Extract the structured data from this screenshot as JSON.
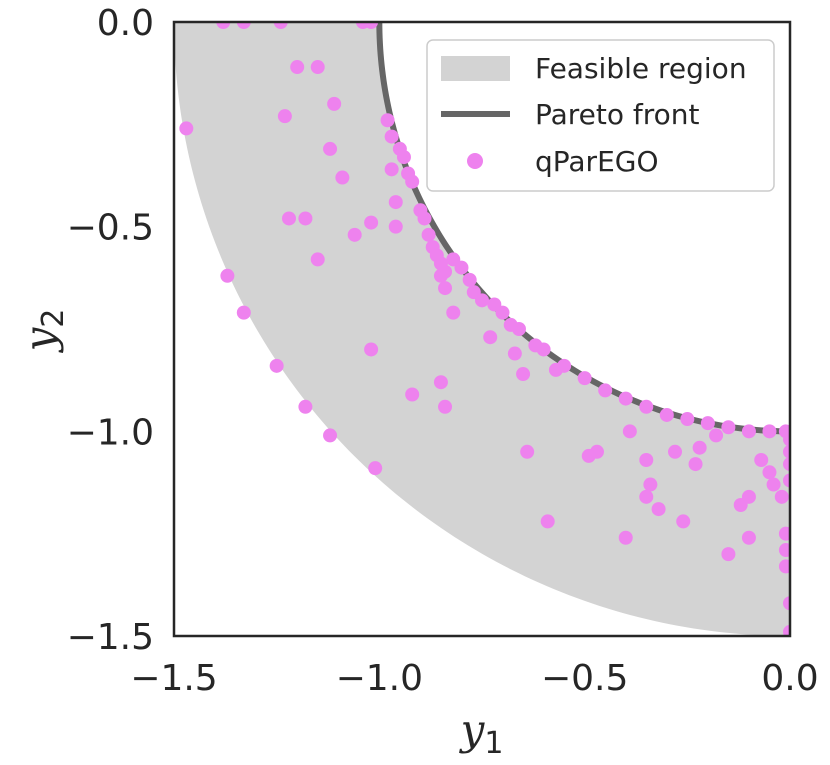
{
  "chart_data": {
    "type": "scatter",
    "title": "",
    "xlabel": "y",
    "xlabel_sub": "1",
    "ylabel": "y",
    "ylabel_sub": "2",
    "xlim": [
      -1.5,
      0.0
    ],
    "ylim": [
      -1.5,
      0.0
    ],
    "xticks": [
      -1.5,
      -1.0,
      -0.5,
      0.0
    ],
    "yticks": [
      -1.5,
      -1.0,
      -0.5,
      0.0
    ],
    "xtick_labels": [
      "−1.5",
      "−1.0",
      "−0.5",
      "0.0"
    ],
    "ytick_labels": [
      "−1.5",
      "−1.0",
      "−0.5",
      "0.0"
    ],
    "grid": false,
    "legend_position": "top-right",
    "colors": {
      "feasible": "#d3d3d3",
      "pareto": "#666666",
      "points": "#ee82ee",
      "axes": "#262626"
    },
    "feasible_region": {
      "inner_radius": 1.0,
      "outer_radius": 1.5,
      "label": "Feasible region"
    },
    "pareto_front": {
      "radius": 1.0,
      "label": "Pareto front"
    },
    "series": [
      {
        "name": "qParEGO",
        "points": [
          [
            -1.38,
            0.0
          ],
          [
            -1.33,
            0.0
          ],
          [
            -1.24,
            0.0
          ],
          [
            -1.04,
            0.0
          ],
          [
            -1.02,
            0.0
          ],
          [
            -1.47,
            -0.26
          ],
          [
            -1.2,
            -0.11
          ],
          [
            -1.15,
            -0.11
          ],
          [
            -1.11,
            -0.2
          ],
          [
            -1.23,
            -0.23
          ],
          [
            -1.12,
            -0.31
          ],
          [
            -1.09,
            -0.38
          ],
          [
            -0.98,
            -0.24
          ],
          [
            -0.97,
            -0.28
          ],
          [
            -0.97,
            -0.36
          ],
          [
            -0.95,
            -0.31
          ],
          [
            -0.94,
            -0.33
          ],
          [
            -0.93,
            -0.37
          ],
          [
            -0.92,
            -0.39
          ],
          [
            -0.96,
            -0.44
          ],
          [
            -0.9,
            -0.46
          ],
          [
            -0.89,
            -0.48
          ],
          [
            -0.88,
            -0.52
          ],
          [
            -0.87,
            -0.55
          ],
          [
            -0.86,
            -0.57
          ],
          [
            -0.85,
            -0.59
          ],
          [
            -0.84,
            -0.61
          ],
          [
            -0.82,
            -0.58
          ],
          [
            -0.8,
            -0.6
          ],
          [
            -0.78,
            -0.63
          ],
          [
            -0.77,
            -0.66
          ],
          [
            -0.75,
            -0.68
          ],
          [
            -0.72,
            -0.69
          ],
          [
            -0.7,
            -0.71
          ],
          [
            -0.68,
            -0.74
          ],
          [
            -0.66,
            -0.75
          ],
          [
            -0.62,
            -0.79
          ],
          [
            -0.6,
            -0.8
          ],
          [
            -0.55,
            -0.84
          ],
          [
            -0.5,
            -0.87
          ],
          [
            -0.45,
            -0.9
          ],
          [
            -0.4,
            -0.92
          ],
          [
            -0.35,
            -0.94
          ],
          [
            -0.3,
            -0.96
          ],
          [
            -0.25,
            -0.97
          ],
          [
            -0.2,
            -0.98
          ],
          [
            -0.15,
            -0.99
          ],
          [
            -0.1,
            -1.0
          ],
          [
            -0.05,
            -1.0
          ],
          [
            -0.01,
            -1.0
          ],
          [
            -1.22,
            -0.48
          ],
          [
            -1.18,
            -0.48
          ],
          [
            -1.06,
            -0.52
          ],
          [
            -1.02,
            -0.49
          ],
          [
            -0.96,
            -0.5
          ],
          [
            -1.15,
            -0.58
          ],
          [
            -0.85,
            -0.62
          ],
          [
            -0.84,
            -0.65
          ],
          [
            -0.82,
            -0.71
          ],
          [
            -0.73,
            -0.77
          ],
          [
            -0.67,
            -0.81
          ],
          [
            -0.65,
            -0.86
          ],
          [
            -0.57,
            -0.85
          ],
          [
            -1.37,
            -0.62
          ],
          [
            -1.33,
            -0.71
          ],
          [
            -1.25,
            -0.84
          ],
          [
            -1.02,
            -0.8
          ],
          [
            -1.18,
            -0.94
          ],
          [
            -1.12,
            -1.01
          ],
          [
            -1.01,
            -1.09
          ],
          [
            -0.92,
            -0.91
          ],
          [
            -0.85,
            -0.88
          ],
          [
            -0.84,
            -0.94
          ],
          [
            -0.64,
            -1.05
          ],
          [
            -0.59,
            -1.22
          ],
          [
            -0.49,
            -1.06
          ],
          [
            -0.47,
            -1.05
          ],
          [
            -0.4,
            -1.26
          ],
          [
            -0.39,
            -1.0
          ],
          [
            -0.35,
            -1.16
          ],
          [
            -0.34,
            -1.13
          ],
          [
            -0.32,
            -1.19
          ],
          [
            -0.26,
            -1.22
          ],
          [
            -0.28,
            -1.05
          ],
          [
            -0.35,
            -1.07
          ],
          [
            -0.22,
            -1.04
          ],
          [
            -0.23,
            -1.08
          ],
          [
            -0.15,
            -1.3
          ],
          [
            -0.12,
            -1.18
          ],
          [
            -0.1,
            -1.16
          ],
          [
            -0.1,
            -1.26
          ],
          [
            -0.07,
            -1.07
          ],
          [
            -0.05,
            -1.1
          ],
          [
            -0.04,
            -1.13
          ],
          [
            -0.02,
            -1.16
          ],
          [
            -0.01,
            -1.25
          ],
          [
            -0.01,
            -1.29
          ],
          [
            -0.01,
            -1.33
          ],
          [
            0.0,
            -1.42
          ],
          [
            0.0,
            -1.49
          ],
          [
            0.0,
            -1.02
          ],
          [
            0.0,
            -1.05
          ],
          [
            0.0,
            -1.08
          ],
          [
            0.0,
            -1.12
          ],
          [
            -0.18,
            -1.01
          ]
        ]
      }
    ]
  }
}
